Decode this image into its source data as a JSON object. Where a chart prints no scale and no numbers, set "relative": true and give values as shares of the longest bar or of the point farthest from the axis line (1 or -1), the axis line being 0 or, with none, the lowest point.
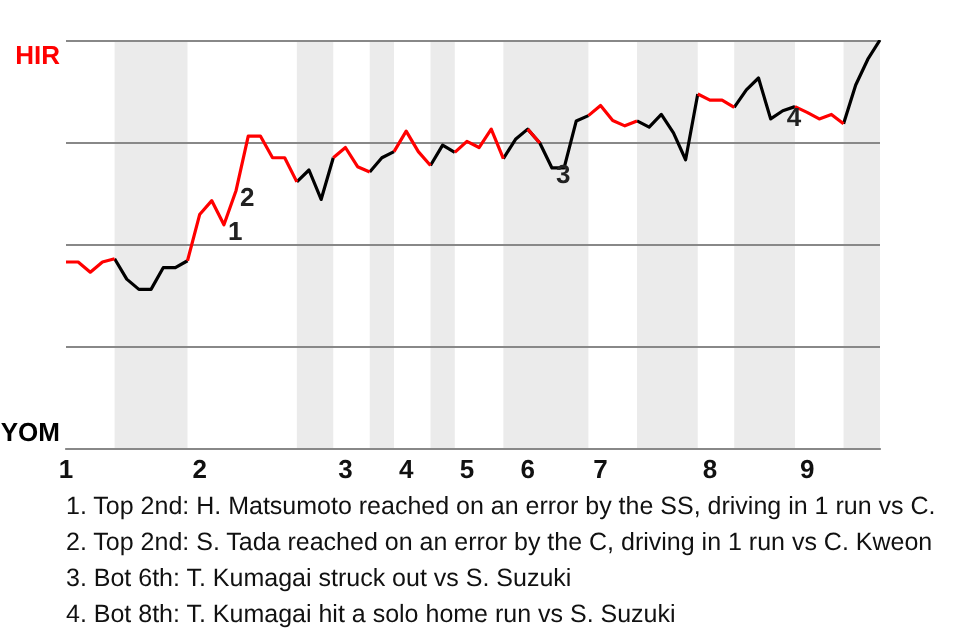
{
  "chart_data": {
    "type": "line",
    "categories": [
      "1",
      null,
      null,
      null,
      null,
      null,
      null,
      null,
      null,
      null,
      null,
      "2",
      null,
      null,
      null,
      null,
      null,
      null,
      null,
      null,
      null,
      null,
      null,
      "3",
      null,
      null,
      null,
      null,
      "4",
      null,
      null,
      null,
      null,
      "5",
      null,
      null,
      null,
      null,
      "6",
      null,
      null,
      null,
      null,
      null,
      "7",
      null,
      null,
      null,
      null,
      null,
      null,
      null,
      null,
      "8",
      null,
      null,
      null,
      null,
      null,
      null,
      null,
      "9",
      null,
      null,
      null,
      null,
      null,
      null
    ],
    "series": [
      {
        "name": "HIR",
        "color": "#ff0000",
        "values": [
          0.457,
          0.457,
          0.432,
          0.457,
          0.465,
          null,
          null,
          null,
          null,
          null,
          0.46,
          0.573,
          0.607,
          0.548,
          0.632,
          0.765,
          0.765,
          0.712,
          0.712,
          0.653,
          null,
          null,
          0.712,
          0.737,
          0.69,
          0.677,
          null,
          0.727,
          0.777,
          0.727,
          0.693,
          null,
          0.725,
          0.752,
          0.737,
          0.782,
          0.71,
          null,
          0.782,
          0.748,
          null,
          null,
          null,
          0.815,
          0.84,
          0.803,
          0.79,
          0.802,
          null,
          null,
          null,
          null,
          0.868,
          0.853,
          0.853,
          0.835,
          null,
          null,
          null,
          null,
          0.837,
          0.823,
          0.807,
          0.818,
          0.795,
          null,
          null,
          null
        ]
      },
      {
        "name": "YOM",
        "color": "#000000",
        "values": [
          null,
          null,
          null,
          null,
          0.465,
          0.415,
          0.39,
          0.39,
          0.443,
          0.443,
          0.46,
          null,
          null,
          null,
          null,
          null,
          null,
          null,
          null,
          0.653,
          0.682,
          0.61,
          0.712,
          null,
          null,
          0.677,
          0.712,
          0.727,
          null,
          null,
          0.693,
          0.743,
          0.725,
          null,
          null,
          null,
          0.71,
          0.757,
          0.782,
          0.748,
          0.687,
          0.687,
          0.802,
          0.815,
          null,
          null,
          null,
          0.802,
          0.787,
          0.818,
          0.773,
          0.707,
          0.868,
          null,
          null,
          0.835,
          0.878,
          0.907,
          0.807,
          0.827,
          0.837,
          null,
          null,
          null,
          0.795,
          0.89,
          0.953,
          1
        ]
      }
    ],
    "relative": true,
    "grid": "y",
    "legend": "left",
    "marker": "none",
    "annotations": [
      {
        "text": "1",
        "y": 0.548
      },
      {
        "text": "2",
        "y": 0.632
      },
      {
        "text": "3",
        "y": 0.687
      },
      {
        "text": "4",
        "y": 0.827
      },
      "1. Top 2nd: H. Matsumoto reached on an error by the SS, driving in 1 run vs C.",
      "2. Top 2nd: S. Tada reached on an error by the C, driving in 1 run vs C. Kweon",
      "3. Bot 6th: T. Kumagai struck out vs S. Suzuki",
      "4. Bot 8th: T. Kumagai hit a solo home run vs S. Suzuki"
    ]
  }
}
